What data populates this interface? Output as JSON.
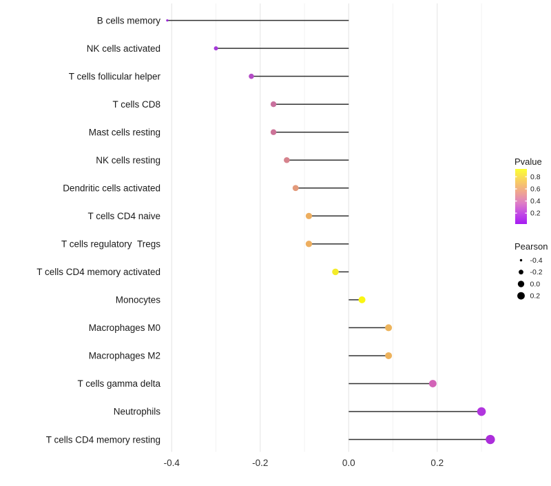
{
  "chart_data": {
    "type": "scatter",
    "subtype": "lollipop",
    "orientation": "horizontal",
    "title": "",
    "xlabel": "",
    "ylabel": "",
    "grid": true,
    "background": "#ffffff",
    "segment_color": "#303030",
    "x_axis": {
      "ticks": [
        "-0.4",
        "-0.2",
        "0.0",
        "0.2"
      ],
      "tick_values": [
        -0.4,
        -0.2,
        0.0,
        0.2
      ],
      "minor_values": [
        -0.3,
        -0.1,
        0.1,
        0.3
      ],
      "xlim": [
        -0.45,
        0.34
      ]
    },
    "categories": [
      "B cells memory",
      "NK cells activated",
      "T cells follicular helper",
      "T cells CD8",
      "Mast cells resting",
      "NK cells resting",
      "Dendritic cells activated",
      "T cells CD4 naive",
      "T cells regulatory  Tregs",
      "T cells CD4 memory activated",
      "Monocytes",
      "Macrophages M0",
      "Macrophages M2",
      "T cells gamma delta",
      "Neutrophils",
      "T cells CD4 memory resting"
    ],
    "points": [
      {
        "label": "B cells memory",
        "pearson": -0.41,
        "pvalue_est": 0.03,
        "color": "#9B26D9",
        "radius": 1.6
      },
      {
        "label": "NK cells activated",
        "pearson": -0.3,
        "pvalue_est": 0.12,
        "color": "#A53AD9",
        "radius": 3.0
      },
      {
        "label": "T cells follicular helper",
        "pearson": -0.22,
        "pvalue_est": 0.22,
        "color": "#B44CC6",
        "radius": 3.8
      },
      {
        "label": "T cells CD8",
        "pearson": -0.17,
        "pvalue_est": 0.4,
        "color": "#C9719E",
        "radius": 4.2
      },
      {
        "label": "Mast cells resting",
        "pearson": -0.17,
        "pvalue_est": 0.4,
        "color": "#CC7398",
        "radius": 4.2
      },
      {
        "label": "NK cells resting",
        "pearson": -0.14,
        "pvalue_est": 0.47,
        "color": "#D6838D",
        "radius": 4.3
      },
      {
        "label": "Dendritic cells activated",
        "pearson": -0.12,
        "pvalue_est": 0.55,
        "color": "#E39A7B",
        "radius": 4.4
      },
      {
        "label": "T cells CD4 naive",
        "pearson": -0.09,
        "pvalue_est": 0.65,
        "color": "#EDAE5F",
        "radius": 4.6
      },
      {
        "label": "T cells regulatory  Tregs",
        "pearson": -0.09,
        "pvalue_est": 0.65,
        "color": "#EDAE5F",
        "radius": 4.7
      },
      {
        "label": "T cells CD4 memory activated",
        "pearson": -0.03,
        "pvalue_est": 0.86,
        "color": "#F4EC29",
        "radius": 4.8
      },
      {
        "label": "Monocytes",
        "pearson": 0.03,
        "pvalue_est": 0.92,
        "color": "#FAF613",
        "radius": 5.0
      },
      {
        "label": "Macrophages M0",
        "pearson": 0.09,
        "pvalue_est": 0.66,
        "color": "#EDB45C",
        "radius": 5.0
      },
      {
        "label": "Macrophages M2",
        "pearson": 0.09,
        "pvalue_est": 0.66,
        "color": "#EDB25C",
        "radius": 5.0
      },
      {
        "label": "T cells gamma delta",
        "pearson": 0.19,
        "pvalue_est": 0.32,
        "color": "#D263B7",
        "radius": 5.4
      },
      {
        "label": "Neutrophils",
        "pearson": 0.3,
        "pvalue_est": 0.15,
        "color": "#B136DE",
        "radius": 6.3
      },
      {
        "label": "T cells CD4 memory resting",
        "pearson": 0.32,
        "pvalue_est": 0.13,
        "color": "#AC2EDB",
        "radius": 6.7
      }
    ],
    "legend_pvalue": {
      "title": "Pvalue",
      "tick_labels": [
        "0.8",
        "0.6",
        "0.4",
        "0.2"
      ],
      "tick_values": [
        0.8,
        0.6,
        0.4,
        0.2
      ],
      "bar_value_top": 0.93,
      "bar_value_bottom": 0.02,
      "gradient": [
        {
          "offset": 0,
          "color": "#FCFF33"
        },
        {
          "offset": 0.22,
          "color": "#F8CE62"
        },
        {
          "offset": 0.42,
          "color": "#EFA58F"
        },
        {
          "offset": 0.62,
          "color": "#DE7EC6"
        },
        {
          "offset": 0.82,
          "color": "#C148E6"
        },
        {
          "offset": 1,
          "color": "#A51BF2"
        }
      ]
    },
    "legend_pearson": {
      "title": "Pearson",
      "dot_color": "#000000",
      "items": [
        {
          "label": "-0.4",
          "radius": 1.7
        },
        {
          "label": "-0.2",
          "radius": 3.4
        },
        {
          "label": "0.0",
          "radius": 4.7
        },
        {
          "label": "0.2",
          "radius": 5.4
        }
      ]
    }
  }
}
